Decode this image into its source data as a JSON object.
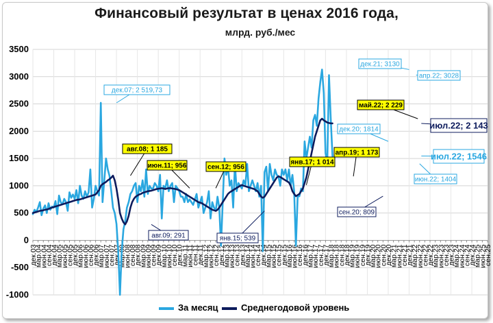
{
  "header": {
    "title": "Финансовый результат в ценах 2016 года,",
    "subtitle": "млрд. руб./мес"
  },
  "legend": {
    "monthly": "За месяц",
    "average": "Среднегодовой уровень"
  },
  "colors": {
    "monthly": "#2aa7e0",
    "average": "#0d1b5c",
    "grid": "#d4d4d4",
    "label_yellow": "#ffff00"
  },
  "chart_data": {
    "type": "line",
    "xlabel": "",
    "ylabel": "",
    "ylim": [
      -1000,
      3500
    ],
    "yticks": [
      -1000,
      -500,
      0,
      500,
      1000,
      1500,
      2000,
      2500,
      3000,
      3500
    ],
    "x_start": "дек.03",
    "x_end": "сен.25",
    "x_tick_step_months": 3,
    "x_tick_labels": [
      "дек.03",
      "мар.04",
      "июн.04",
      "сен.04",
      "дек.04",
      "мар.05",
      "июн.05",
      "сен.05",
      "дек.05",
      "мар.06",
      "июн.06",
      "сен.06",
      "дек.06",
      "мар.07",
      "июн.07",
      "сен.07",
      "дек.07",
      "мар.08",
      "июн.08",
      "сен.08",
      "дек.08",
      "мар.09",
      "июн.09",
      "сен.09",
      "дек.09",
      "мар.10",
      "июн.10",
      "сен.10",
      "дек.10",
      "мар.11",
      "июн.11",
      "сен.11",
      "дек.11",
      "мар.12",
      "июн.12",
      "сен.12",
      "дек.12",
      "мар.13",
      "июн.13",
      "сен.13",
      "дек.13",
      "мар.14",
      "июн.14",
      "сен.14",
      "дек.14",
      "мар.15",
      "июн.15",
      "сен.15",
      "дек.15",
      "мар.16",
      "июн.16",
      "сен.16",
      "дек.16",
      "мар.17",
      "июн.17",
      "сен.17",
      "дек.17",
      "мар.18",
      "июн.18",
      "сен.18",
      "дек.18",
      "мар.19",
      "июн.19",
      "сен.19",
      "дек.19",
      "мар.20",
      "июн.20",
      "сен.20",
      "дек.20",
      "мар.21",
      "июн.21",
      "сен.21",
      "дек.21",
      "мар.22",
      "июн.22",
      "сен.22",
      "дек.22",
      "мар.23",
      "июн.23",
      "сен.23",
      "дек.23",
      "мар.24",
      "июн.24",
      "сен.24",
      "дек.24",
      "мар.25",
      "июн.25",
      "сен.25"
    ],
    "series": [
      {
        "name": "За месяц",
        "start": "2003-12",
        "values": [
          480,
          560,
          520,
          600,
          700,
          460,
          580,
          640,
          500,
          680,
          560,
          620,
          600,
          720,
          480,
          820,
          700,
          660,
          760,
          700,
          540,
          880,
          780,
          840,
          760,
          920,
          680,
          1000,
          820,
          760,
          900,
          800,
          880,
          1300,
          600,
          760,
          1000,
          900,
          820,
          2520,
          700,
          1100,
          1500,
          1300,
          1180,
          900,
          600,
          500,
          300,
          -200,
          -1000,
          -200,
          200,
          350,
          600,
          700,
          850,
          900,
          1000,
          1050,
          700,
          1000,
          900,
          1100,
          800,
          1300,
          850,
          1000,
          950,
          950,
          1050,
          1000,
          900,
          1200,
          400,
          1000,
          956,
          1100,
          900,
          1000,
          1050,
          700,
          1000,
          956,
          900,
          800,
          800,
          700,
          850,
          700,
          750,
          700,
          650,
          750,
          850,
          600,
          700,
          800,
          500,
          600,
          700,
          900,
          400,
          700,
          600,
          539,
          800,
          600,
          -100,
          700,
          1500,
          1200,
          1350,
          1000,
          1100,
          600,
          1400,
          900,
          1050,
          1000,
          950,
          1100,
          1014,
          1400,
          900,
          1000,
          1100,
          1000,
          900,
          1050,
          800,
          1000,
          -200,
          1250,
          1350,
          900,
          1400,
          1200,
          1100,
          1300,
          1200,
          1173,
          1000,
          1300,
          1200,
          1300,
          1100,
          1300,
          1000,
          1200,
          900,
          -100,
          800,
          809,
          950,
          900,
          1814,
          1500,
          1700,
          1900,
          1700,
          2200,
          2300,
          2100,
          2600,
          2900,
          3130,
          2700,
          1600,
          1400,
          3028,
          2229,
          1546
        ]
      },
      {
        "name": "Среднегодовой уровень",
        "start": "2003-12",
        "values": [
          500,
          510,
          520,
          530,
          540,
          545,
          550,
          560,
          565,
          575,
          590,
          600,
          610,
          620,
          630,
          640,
          650,
          660,
          670,
          680,
          690,
          700,
          710,
          720,
          730,
          740,
          745,
          750,
          760,
          770,
          780,
          790,
          800,
          810,
          820,
          830,
          840,
          880,
          920,
          1000,
          1030,
          1050,
          1070,
          1100,
          1120,
          1150,
          1185,
          1100,
          950,
          750,
          500,
          400,
          330,
          291,
          350,
          450,
          600,
          700,
          760,
          800,
          820,
          840,
          850,
          870,
          880,
          890,
          900,
          905,
          910,
          920,
          930,
          940,
          945,
          950,
          956,
          950,
          940,
          950,
          955,
          956,
          950,
          945,
          940,
          930,
          920,
          900,
          880,
          860,
          840,
          820,
          800,
          780,
          760,
          740,
          720,
          700,
          690,
          680,
          660,
          640,
          620,
          600,
          580,
          560,
          550,
          539,
          560,
          600,
          650,
          700,
          750,
          800,
          850,
          880,
          900,
          920,
          940,
          960,
          980,
          1000,
          1014,
          1000,
          990,
          980,
          970,
          960,
          950,
          940,
          920,
          900,
          850,
          800,
          780,
          800,
          850,
          900,
          950,
          1000,
          1050,
          1100,
          1150,
          1173,
          1160,
          1140,
          1120,
          1100,
          1080,
          1060,
          1000,
          900,
          850,
          809,
          830,
          850,
          900,
          950,
          1050,
          1150,
          1300,
          1450,
          1600,
          1750,
          1900,
          2000,
          2100,
          2200,
          2229,
          2200,
          2180,
          2160,
          2150,
          2145,
          2143
        ]
      }
    ],
    "annotations": [
      {
        "text": "дек.07; 2 519,73",
        "date": "2007-12",
        "value": 2519.73,
        "style": "monthly"
      },
      {
        "text": "авг.08; 1 185",
        "date": "2008-08",
        "value": 1185,
        "style": "yellow"
      },
      {
        "text": "авг.09; 291",
        "date": "2009-08",
        "value": 291,
        "style": "average"
      },
      {
        "text": "июн.11; 956",
        "date": "2011-06",
        "value": 956,
        "style": "yellow"
      },
      {
        "text": "сен.12; 956",
        "date": "2012-09",
        "value": 956,
        "style": "yellow"
      },
      {
        "text": "янв.15; 539",
        "date": "2015-01",
        "value": 539,
        "style": "average"
      },
      {
        "text": "янв.17; 1 014",
        "date": "2017-01",
        "value": 1014,
        "style": "yellow"
      },
      {
        "text": "апр.19; 1 173",
        "date": "2019-04",
        "value": 1173,
        "style": "yellow"
      },
      {
        "text": "сен.20; 809",
        "date": "2020-09",
        "value": 809,
        "style": "average"
      },
      {
        "text": "дек.20; 1814",
        "date": "2020-12",
        "value": 1814,
        "style": "monthly"
      },
      {
        "text": "дек.21; 3130",
        "date": "2021-12",
        "value": 3130,
        "style": "monthly"
      },
      {
        "text": "май.22; 2 229",
        "date": "2022-05",
        "value": 2229,
        "style": "yellow"
      },
      {
        "text": "апр.22; 3028",
        "date": "2022-04",
        "value": 3028,
        "style": "monthly"
      },
      {
        "text": "июл.22; 2 143",
        "date": "2022-07",
        "value": 2143,
        "style": "average_big"
      },
      {
        "text": "июл.22; 1546",
        "date": "2022-07",
        "value": 1546,
        "style": "monthly_big"
      },
      {
        "text": "июн.22; 1404",
        "date": "2022-06",
        "value": 1404,
        "style": "monthly"
      }
    ],
    "grid": true,
    "legend_position": "bottom"
  }
}
